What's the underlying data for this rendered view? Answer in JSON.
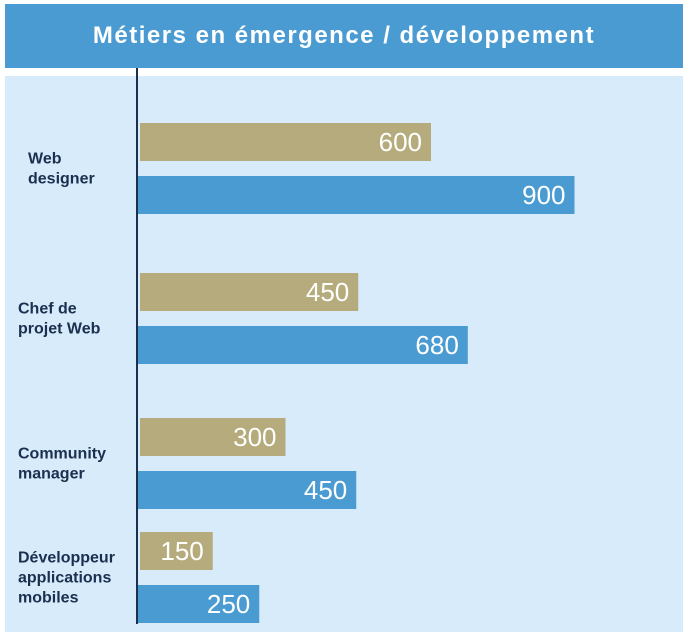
{
  "chart_data": {
    "type": "bar",
    "orientation": "horizontal",
    "title": "Métiers en émergence / développement",
    "categories": [
      [
        "Web",
        "designer"
      ],
      [
        "Chef de",
        "projet  Web"
      ],
      [
        "Community",
        "manager"
      ],
      [
        "Développeur",
        "applications",
        "mobiles"
      ]
    ],
    "series": [
      {
        "values": [
          600,
          450,
          300,
          150
        ],
        "color": "#b5ab7c"
      },
      {
        "values": [
          900,
          680,
          450,
          250
        ],
        "color": "#4a9bd2"
      }
    ],
    "xlim": [
      0,
      1000
    ],
    "grid": false,
    "legend": "none"
  },
  "colors": {
    "title_bar": "#4a9bd2",
    "background": "#d7ebfa",
    "axis": "#1b2f4f",
    "category_text": "#1b2f4f",
    "value_text": "#ffffff"
  }
}
